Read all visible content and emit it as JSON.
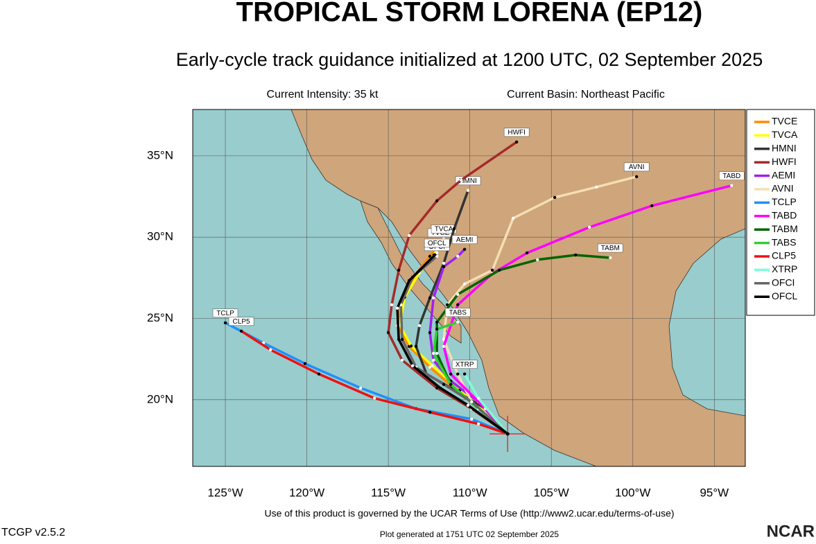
{
  "header": {
    "title": "TROPICAL STORM LORENA (EP12)",
    "subtitle": "Early-cycle track guidance initialized at 1200 UTC, 02 September 2025",
    "intensity": "Current Intensity: 35 kt",
    "basin": "Current Basin: Northeast Pacific"
  },
  "map": {
    "xlim": [
      -127,
      -93.1
    ],
    "ylim": [
      15.9,
      37.85
    ],
    "xticks": [
      {
        "value": -125,
        "label": "125°W"
      },
      {
        "value": -120,
        "label": "120°W"
      },
      {
        "value": -115,
        "label": "115°W"
      },
      {
        "value": -110,
        "label": "110°W"
      },
      {
        "value": -105,
        "label": "105°W"
      },
      {
        "value": -100,
        "label": "100°W"
      },
      {
        "value": -95,
        "label": "95°W"
      }
    ],
    "yticks": [
      {
        "value": 20,
        "label": "20°N"
      },
      {
        "value": 25,
        "label": "25°N"
      },
      {
        "value": 30,
        "label": "30°N"
      },
      {
        "value": 35,
        "label": "35°N"
      }
    ],
    "start": [
      -107.68,
      17.9
    ],
    "tracks": [
      {
        "name": "TVCE",
        "color": "#ff8c00",
        "points": [
          [
            -107.68,
            17.9
          ],
          [
            -109.04,
            19.23
          ],
          [
            -110.74,
            20.51
          ],
          [
            -112.45,
            22.0
          ],
          [
            -113.72,
            23.28
          ],
          [
            -114.45,
            24.56
          ],
          [
            -114.15,
            26.26
          ],
          [
            -113.3,
            27.75
          ],
          [
            -112.45,
            28.82
          ],
          [
            -111.81,
            29.67
          ]
        ]
      },
      {
        "name": "TVCA",
        "color": "#ffff00",
        "points": [
          [
            -107.68,
            17.9
          ],
          [
            -109.0,
            19.3
          ],
          [
            -110.6,
            20.6
          ],
          [
            -112.3,
            22.1
          ],
          [
            -113.6,
            23.3
          ],
          [
            -114.3,
            24.6
          ],
          [
            -114.0,
            26.3
          ],
          [
            -113.1,
            27.8
          ],
          [
            -112.2,
            28.9
          ],
          [
            -111.6,
            29.9
          ]
        ]
      },
      {
        "name": "HMNI",
        "color": "#333333",
        "points": [
          [
            -107.68,
            17.9
          ],
          [
            -109.04,
            19.45
          ],
          [
            -111.17,
            20.72
          ],
          [
            -112.66,
            21.58
          ],
          [
            -113.3,
            23.28
          ],
          [
            -113.09,
            24.56
          ],
          [
            -112.45,
            26.26
          ],
          [
            -111.6,
            28.39
          ],
          [
            -110.96,
            30.52
          ],
          [
            -110.11,
            32.87
          ]
        ]
      },
      {
        "name": "HWFI",
        "color": "#a52a2a",
        "points": [
          [
            -107.68,
            17.9
          ],
          [
            -109.89,
            19.45
          ],
          [
            -112.02,
            20.72
          ],
          [
            -114.15,
            22.43
          ],
          [
            -115.0,
            24.13
          ],
          [
            -114.79,
            25.84
          ],
          [
            -114.36,
            27.97
          ],
          [
            -113.72,
            30.1
          ],
          [
            -112.02,
            32.23
          ],
          [
            -110.53,
            33.51
          ],
          [
            -107.13,
            35.85
          ]
        ]
      },
      {
        "name": "AEMI",
        "color": "#a020f0",
        "points": [
          [
            -107.68,
            17.9
          ],
          [
            -109.47,
            19.87
          ],
          [
            -111.17,
            21.15
          ],
          [
            -112.23,
            22.43
          ],
          [
            -112.45,
            24.13
          ],
          [
            -112.23,
            26.26
          ],
          [
            -111.6,
            28.18
          ],
          [
            -110.74,
            28.82
          ],
          [
            -110.32,
            29.25
          ]
        ]
      },
      {
        "name": "AVNI",
        "color": "#f5deb3",
        "points": [
          [
            -107.68,
            17.9
          ],
          [
            -109.89,
            19.87
          ],
          [
            -110.74,
            21.58
          ],
          [
            -111.6,
            23.71
          ],
          [
            -111.38,
            25.84
          ],
          [
            -110.32,
            27.12
          ],
          [
            -108.62,
            27.97
          ],
          [
            -107.34,
            31.16
          ],
          [
            -104.79,
            32.44
          ],
          [
            -102.23,
            33.08
          ],
          [
            -99.77,
            33.72
          ]
        ]
      },
      {
        "name": "TCLP",
        "color": "#1e90ff",
        "points": [
          [
            -107.68,
            17.9
          ],
          [
            -109.89,
            18.81
          ],
          [
            -113.3,
            19.45
          ],
          [
            -116.7,
            20.72
          ],
          [
            -120.11,
            22.22
          ],
          [
            -122.66,
            23.49
          ],
          [
            -125.0,
            24.73
          ]
        ]
      },
      {
        "name": "TABD",
        "color": "#ff00ff",
        "points": [
          [
            -107.68,
            17.9
          ],
          [
            -109.04,
            19.45
          ],
          [
            -111.17,
            21.58
          ],
          [
            -111.6,
            23.28
          ],
          [
            -110.74,
            25.84
          ],
          [
            -108.62,
            27.75
          ],
          [
            -106.49,
            29.03
          ],
          [
            -102.66,
            30.61
          ],
          [
            -98.83,
            31.93
          ],
          [
            -93.94,
            33.17
          ]
        ]
      },
      {
        "name": "TABM",
        "color": "#006400",
        "points": [
          [
            -107.68,
            17.9
          ],
          [
            -109.47,
            19.45
          ],
          [
            -111.17,
            20.94
          ],
          [
            -112.02,
            22.85
          ],
          [
            -112.02,
            24.77
          ],
          [
            -110.74,
            26.48
          ],
          [
            -108.19,
            27.97
          ],
          [
            -105.85,
            28.61
          ],
          [
            -103.51,
            28.9
          ],
          [
            -101.38,
            28.73
          ]
        ]
      },
      {
        "name": "TABS",
        "color": "#32cd32",
        "points": [
          [
            -107.68,
            17.9
          ],
          [
            -109.47,
            19.45
          ],
          [
            -111.17,
            20.94
          ],
          [
            -112.23,
            22.85
          ],
          [
            -112.02,
            24.34
          ],
          [
            -110.74,
            24.77
          ]
        ]
      },
      {
        "name": "CLP5",
        "color": "#ee1111",
        "points": [
          [
            -107.68,
            17.9
          ],
          [
            -109.47,
            18.51
          ],
          [
            -112.45,
            19.23
          ],
          [
            -115.85,
            20.09
          ],
          [
            -119.26,
            21.58
          ],
          [
            -122.23,
            23.07
          ],
          [
            -124.02,
            24.22
          ]
        ]
      },
      {
        "name": "XTRP",
        "color": "#7fffd4",
        "points": [
          [
            -107.68,
            17.9
          ],
          [
            -109.47,
            20.09
          ],
          [
            -110.32,
            21.58
          ]
        ]
      },
      {
        "name": "OFCI",
        "color": "#666666",
        "points": [
          [
            -107.68,
            17.9
          ],
          [
            -109.89,
            19.87
          ],
          [
            -111.6,
            20.94
          ],
          [
            -113.3,
            22.0
          ],
          [
            -114.15,
            23.71
          ],
          [
            -114.23,
            25.84
          ],
          [
            -113.51,
            27.54
          ],
          [
            -112.02,
            28.82
          ]
        ]
      },
      {
        "name": "OFCL",
        "color": "#000000",
        "points": [
          [
            -107.68,
            17.9
          ],
          [
            -110.11,
            19.66
          ],
          [
            -111.81,
            20.72
          ],
          [
            -113.51,
            22.09
          ],
          [
            -114.36,
            23.71
          ],
          [
            -114.45,
            25.63
          ],
          [
            -113.72,
            27.33
          ],
          [
            -112.02,
            29.03
          ]
        ]
      }
    ]
  },
  "footer": {
    "terms": "Use of this product is governed by the UCAR Terms of Use (http://www2.ucar.edu/terms-of-use)",
    "version": "TCGP v2.5.2",
    "generated": "Plot generated at 1751 UTC   02 September 2025",
    "logo": "NCAR"
  }
}
